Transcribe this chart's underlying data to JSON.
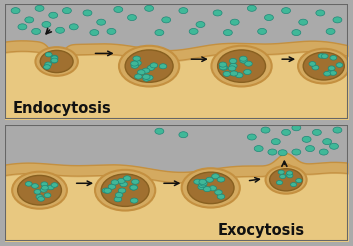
{
  "fig_width": 3.53,
  "fig_height": 2.46,
  "dpi": 100,
  "sky_blue": "#c8dff0",
  "sky_blue_top": "#d8ecf8",
  "cell_beige": "#e8c880",
  "membrane_tan": "#d4aa60",
  "membrane_dark": "#c49040",
  "vesicle_outer": "#d4aa60",
  "vesicle_outer_edge": "#c49040",
  "vesicle_inner": "#a07030",
  "vesicle_inner_edge": "#886020",
  "dot_fill": "#40b898",
  "dot_edge": "#208878",
  "border_col": "#666666",
  "text_col": "#111111",
  "endocytosis_label": "Endocytosis",
  "exocytosis_label": "Exocytosis",
  "label_fontsize": 10.5
}
